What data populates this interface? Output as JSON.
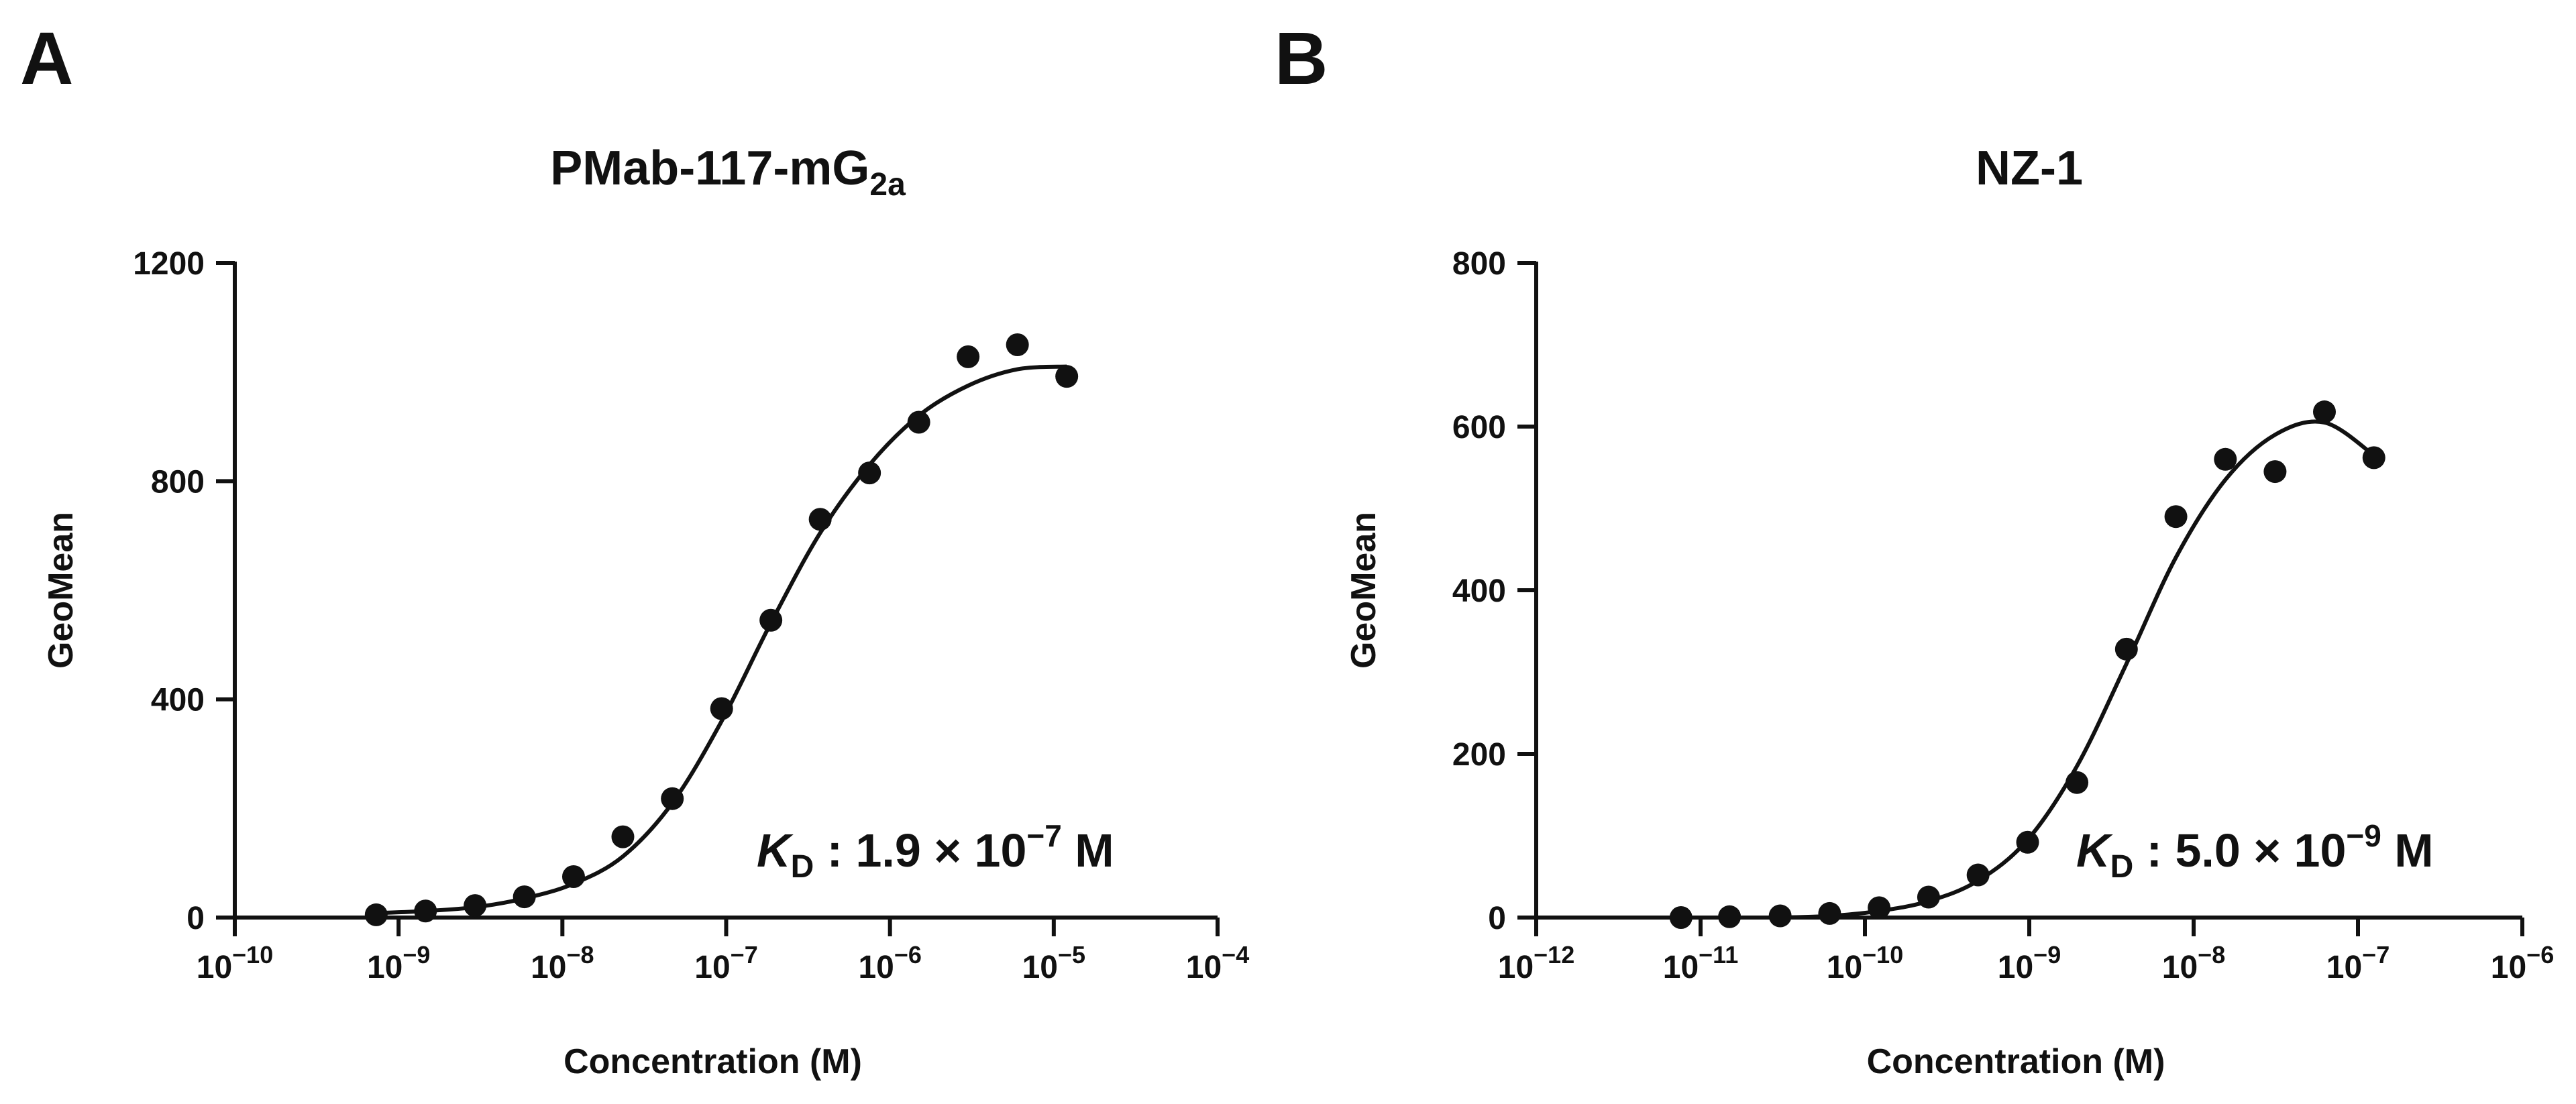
{
  "chart_data": [
    {
      "panel": "A",
      "type": "scatter",
      "title": "PMab-117-mG",
      "title_subscript": "2a",
      "xlabel": "Concentration (M)",
      "ylabel": "GeoMean",
      "xscale": "log",
      "xlim": [
        1e-10,
        0.0001
      ],
      "ylim": [
        0,
        1200
      ],
      "yticks": [
        0,
        400,
        800,
        1200
      ],
      "xtick_exponents": [
        -10,
        -9,
        -8,
        -7,
        -6,
        -5,
        -4
      ],
      "series": [
        {
          "name": "PMab-117-mG2a",
          "points": [
            {
              "x": 7.3e-10,
              "y": 5
            },
            {
              "x": 1.46e-09,
              "y": 12
            },
            {
              "x": 2.93e-09,
              "y": 22
            },
            {
              "x": 5.86e-09,
              "y": 38
            },
            {
              "x": 1.17e-08,
              "y": 75
            },
            {
              "x": 2.34e-08,
              "y": 148
            },
            {
              "x": 4.69e-08,
              "y": 218
            },
            {
              "x": 9.38e-08,
              "y": 383
            },
            {
              "x": 1.875e-07,
              "y": 545
            },
            {
              "x": 3.75e-07,
              "y": 730
            },
            {
              "x": 7.5e-07,
              "y": 815
            },
            {
              "x": 1.5e-06,
              "y": 908
            },
            {
              "x": 3e-06,
              "y": 1028
            },
            {
              "x": 6e-06,
              "y": 1050
            },
            {
              "x": 1.2e-05,
              "y": 992
            }
          ]
        }
      ],
      "fit_curve": [
        {
          "x": 7.3e-10,
          "y": 8
        },
        {
          "x": 1.46e-09,
          "y": 12
        },
        {
          "x": 2.93e-09,
          "y": 19
        },
        {
          "x": 5.86e-09,
          "y": 35
        },
        {
          "x": 1.17e-08,
          "y": 62
        },
        {
          "x": 2.34e-08,
          "y": 112
        },
        {
          "x": 4.69e-08,
          "y": 210
        },
        {
          "x": 9.38e-08,
          "y": 360
        },
        {
          "x": 1.875e-07,
          "y": 540
        },
        {
          "x": 3.75e-07,
          "y": 705
        },
        {
          "x": 7.5e-07,
          "y": 830
        },
        {
          "x": 1.5e-06,
          "y": 920
        },
        {
          "x": 3e-06,
          "y": 975
        },
        {
          "x": 6e-06,
          "y": 1005
        },
        {
          "x": 1.2e-05,
          "y": 1010
        }
      ],
      "annotation": {
        "symbol": "K",
        "subscript": "D",
        "text": ": 1.9 × 10",
        "exponent": "−7",
        "unit": "M"
      }
    },
    {
      "panel": "B",
      "type": "scatter",
      "title": "NZ-1",
      "title_subscript": "",
      "xlabel": "Concentration (M)",
      "ylabel": "GeoMean",
      "xscale": "log",
      "xlim": [
        1e-12,
        1e-06
      ],
      "ylim": [
        0,
        800
      ],
      "yticks": [
        0,
        200,
        400,
        600,
        800
      ],
      "xtick_exponents": [
        -12,
        -11,
        -10,
        -9,
        -8,
        -7,
        -6
      ],
      "series": [
        {
          "name": "NZ-1",
          "points": [
            {
              "x": 7.6e-12,
              "y": 0
            },
            {
              "x": 1.5e-11,
              "y": 1
            },
            {
              "x": 3.05e-11,
              "y": 2
            },
            {
              "x": 6.1e-11,
              "y": 5
            },
            {
              "x": 1.22e-10,
              "y": 12
            },
            {
              "x": 2.44e-10,
              "y": 25
            },
            {
              "x": 4.88e-10,
              "y": 52
            },
            {
              "x": 9.77e-10,
              "y": 92
            },
            {
              "x": 1.95e-09,
              "y": 165
            },
            {
              "x": 3.9e-09,
              "y": 328
            },
            {
              "x": 7.8e-09,
              "y": 490
            },
            {
              "x": 1.56e-08,
              "y": 560
            },
            {
              "x": 3.13e-08,
              "y": 545
            },
            {
              "x": 6.25e-08,
              "y": 618
            },
            {
              "x": 1.25e-07,
              "y": 562
            }
          ]
        }
      ],
      "fit_curve": [
        {
          "x": 3.05e-11,
          "y": 0
        },
        {
          "x": 6.1e-11,
          "y": 2
        },
        {
          "x": 1.22e-10,
          "y": 8
        },
        {
          "x": 2.44e-10,
          "y": 20
        },
        {
          "x": 4.88e-10,
          "y": 45
        },
        {
          "x": 9.77e-10,
          "y": 95
        },
        {
          "x": 1.95e-09,
          "y": 185
        },
        {
          "x": 3.9e-09,
          "y": 310
        },
        {
          "x": 7.8e-09,
          "y": 440
        },
        {
          "x": 1.56e-08,
          "y": 535
        },
        {
          "x": 3.13e-08,
          "y": 590
        },
        {
          "x": 6.25e-08,
          "y": 605
        },
        {
          "x": 1.25e-07,
          "y": 565
        }
      ],
      "annotation": {
        "symbol": "K",
        "subscript": "D",
        "text": ": 5.0 × 10",
        "exponent": "−9",
        "unit": "M"
      }
    }
  ],
  "styles": {
    "ink": "#111111",
    "background": "#ffffff"
  }
}
